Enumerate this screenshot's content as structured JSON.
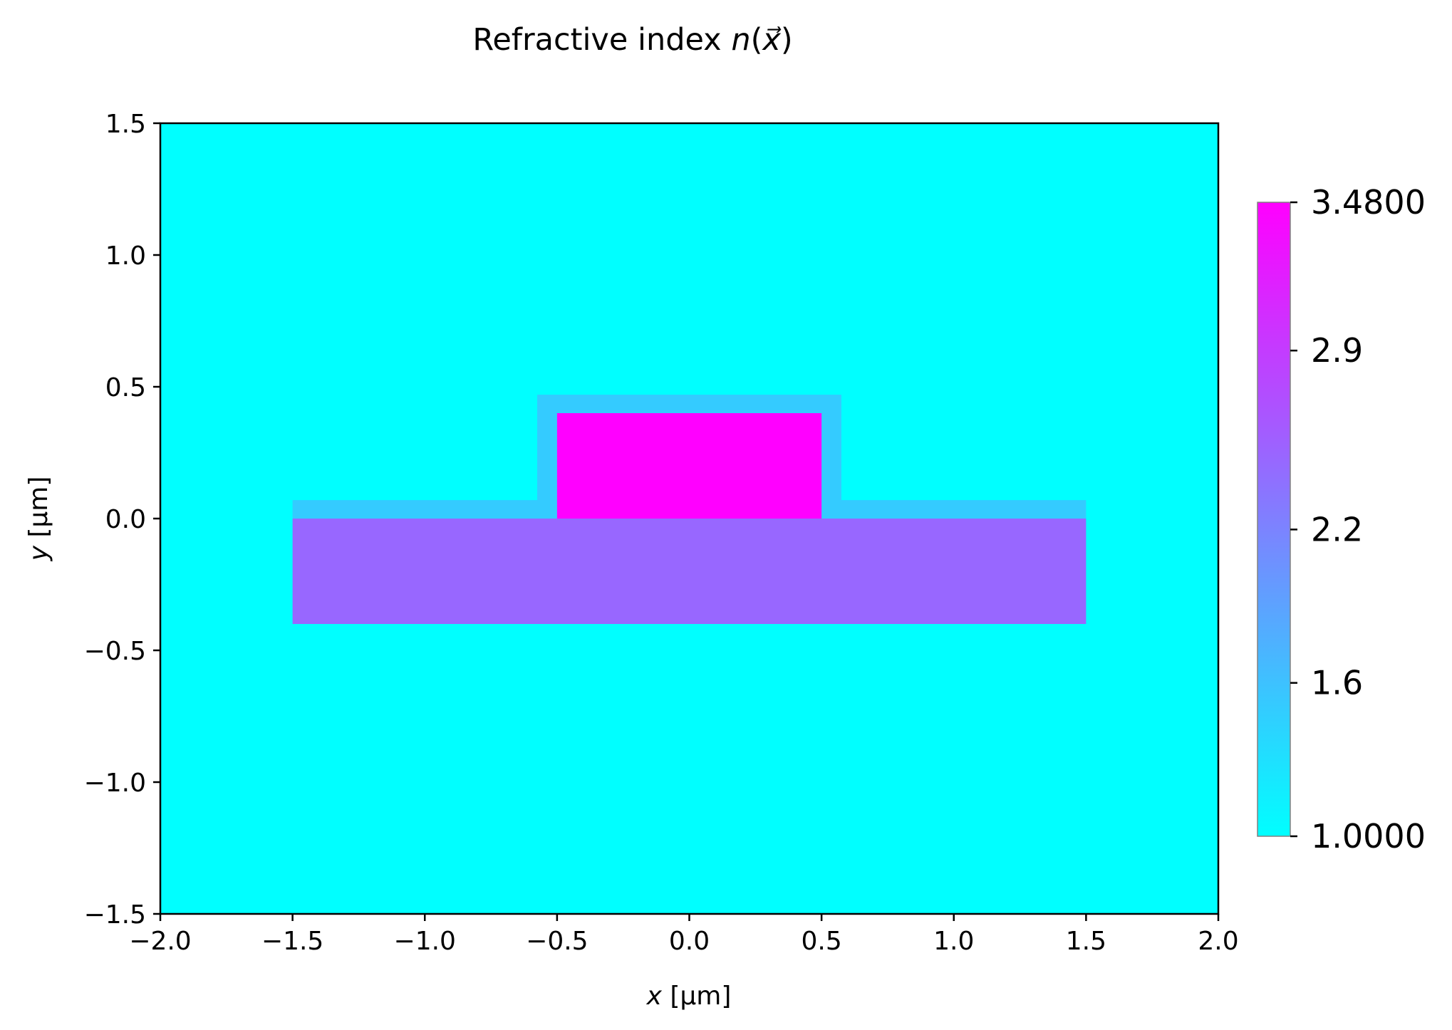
{
  "chart_data": {
    "type": "heatmap",
    "title": "Refractive index",
    "title_math": "n(x⃗)",
    "title_math_symbol": "n",
    "title_math_arg": "x⃗",
    "xlabel_var": "x",
    "xlabel_unit": "[µm]",
    "ylabel_var": "y",
    "ylabel_unit": "[µm]",
    "xlim": [
      -2.0,
      2.0
    ],
    "ylim": [
      -1.5,
      1.5
    ],
    "x_ticks": [
      -2.0,
      -1.5,
      -1.0,
      -0.5,
      0.0,
      0.5,
      1.0,
      1.5,
      2.0
    ],
    "x_tick_labels": [
      "−2.0",
      "−1.5",
      "−1.0",
      "−0.5",
      "0.0",
      "0.5",
      "1.0",
      "1.5",
      "2.0"
    ],
    "y_ticks": [
      -1.5,
      -1.0,
      -0.5,
      0.0,
      0.5,
      1.0,
      1.5
    ],
    "y_tick_labels": [
      "−1.5",
      "−1.0",
      "−0.5",
      "0.0",
      "0.5",
      "1.0",
      "1.5"
    ],
    "colormap": "cool",
    "colorbar": {
      "min": 1.0,
      "max": 3.48,
      "ticks": [
        1.0,
        1.6,
        2.2,
        2.9,
        3.48
      ],
      "tick_labels": [
        "1.0000",
        "1.6",
        "2.2",
        "2.9",
        "3.4800"
      ]
    },
    "background_index": 1.0,
    "regions": [
      {
        "name": "cladding-slab-layer",
        "x": [
          -1.5,
          1.5
        ],
        "y": [
          0.0,
          0.07
        ],
        "n": 1.44,
        "color": "#34CBFF"
      },
      {
        "name": "cladding-ridge-layer",
        "x": [
          -0.575,
          0.575
        ],
        "y": [
          0.0,
          0.47
        ],
        "n": 1.44,
        "color": "#34CBFF"
      },
      {
        "name": "substrate-slab",
        "x": [
          -1.5,
          1.5
        ],
        "y": [
          -0.4,
          0.0
        ],
        "n": 2.46,
        "color": "#9867FF"
      },
      {
        "name": "core-ridge",
        "x": [
          -0.5,
          0.5
        ],
        "y": [
          0.0,
          0.4
        ],
        "n": 3.48,
        "color": "#FF00FF"
      }
    ],
    "colors": {
      "background": "#00FFFF",
      "cmap_low": "#00FFFF",
      "cmap_high": "#FF00FF"
    },
    "grid": false
  }
}
